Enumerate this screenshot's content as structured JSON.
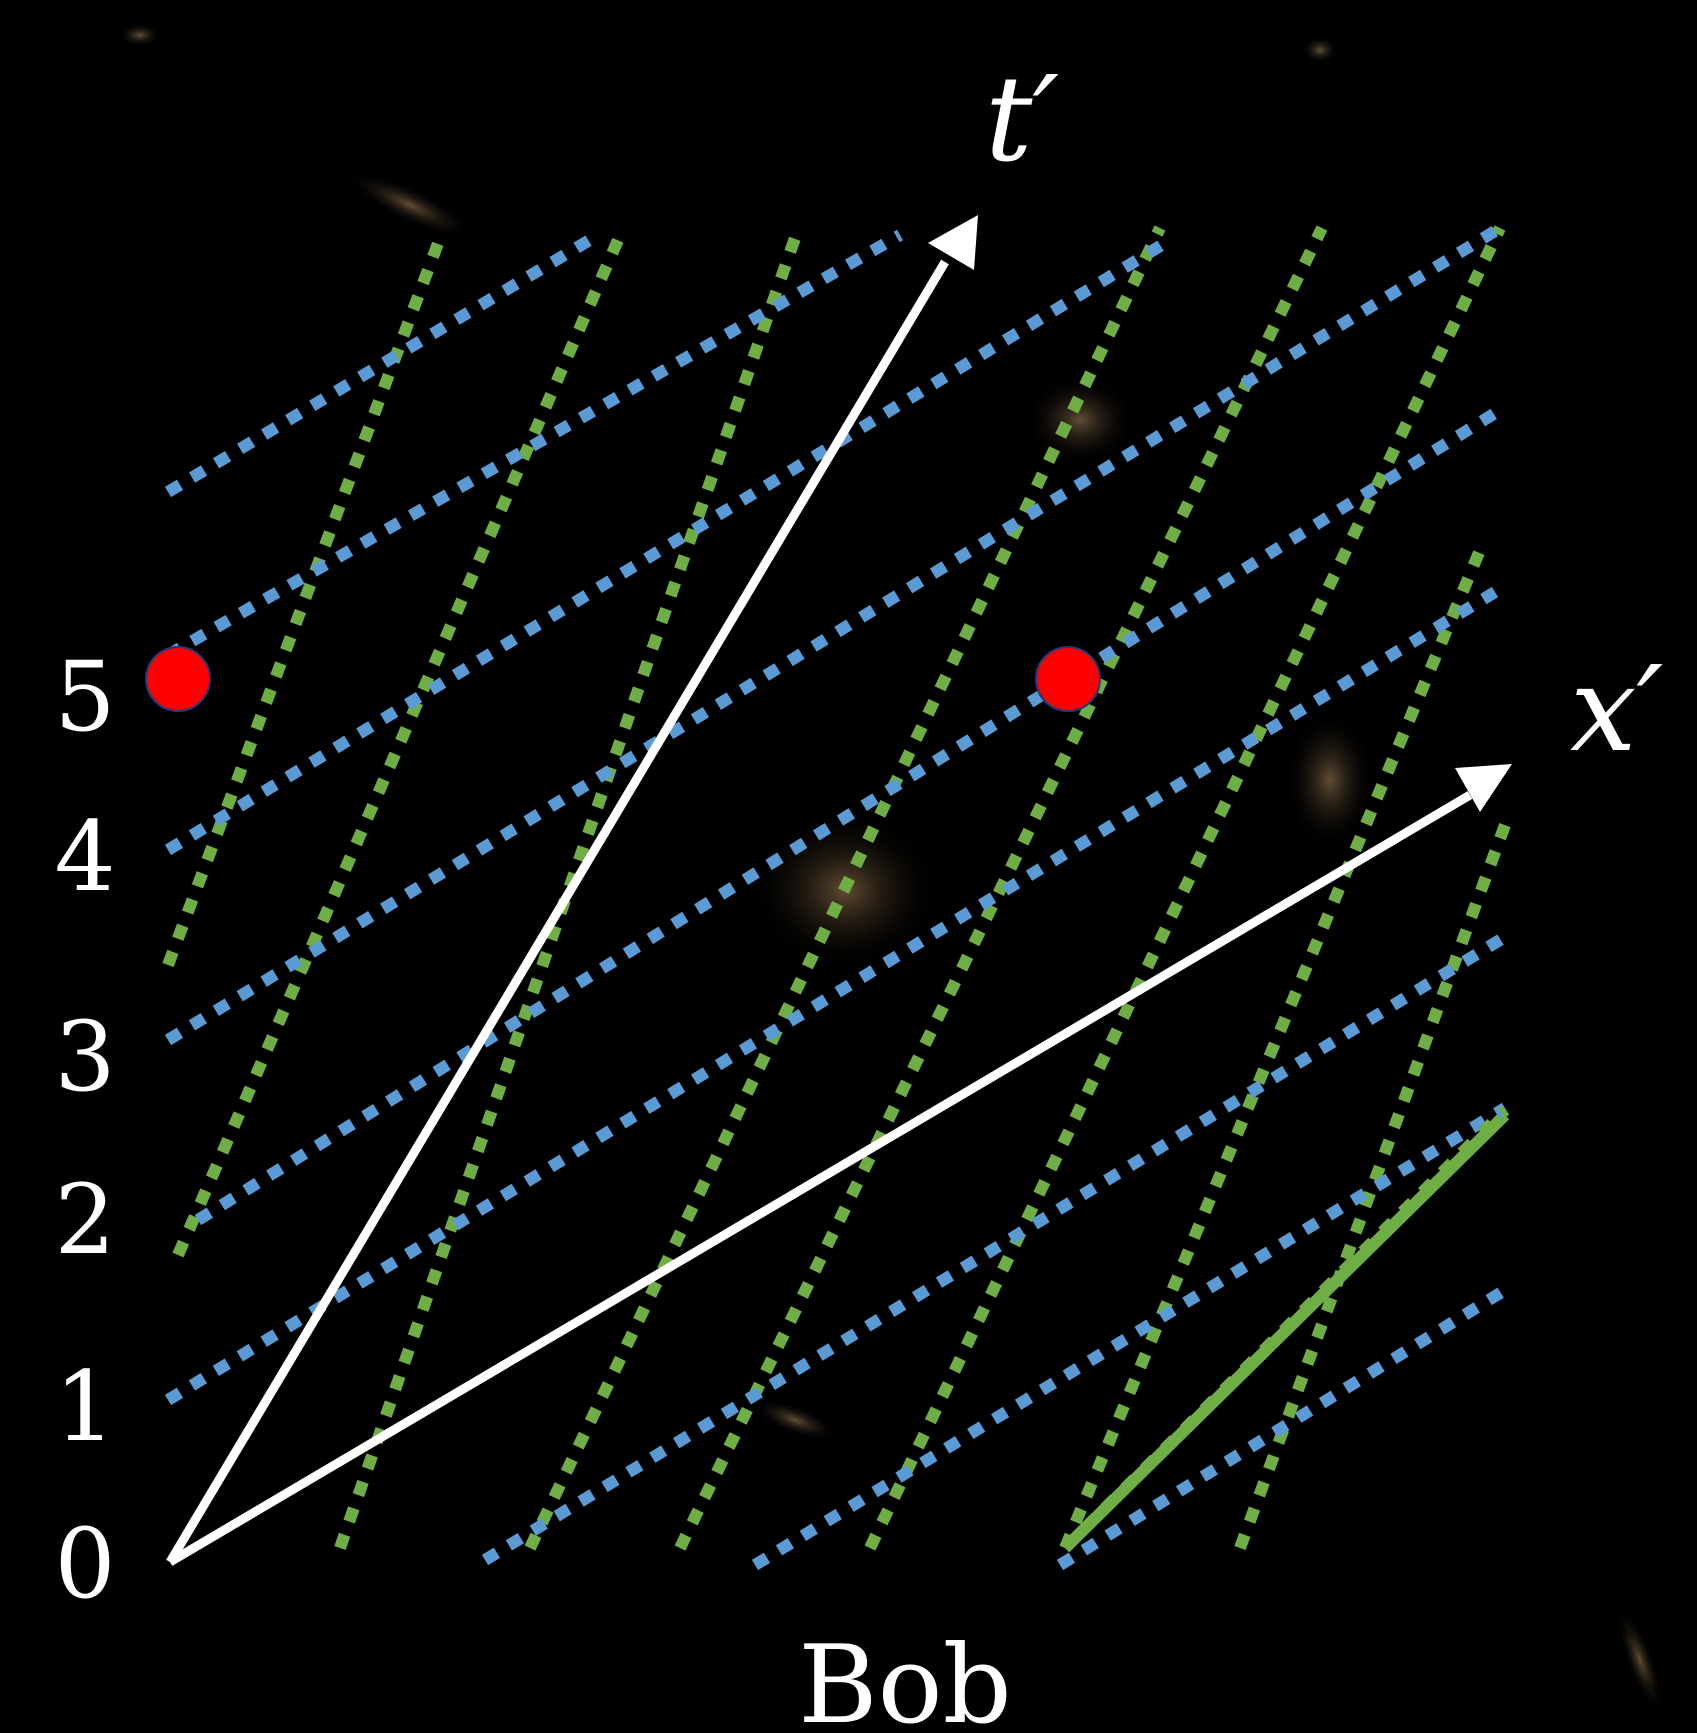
{
  "diagram": {
    "time_axis_label": "t′",
    "space_axis_label": "x′",
    "observer_label": "Bob",
    "tick_labels": [
      "0",
      "1",
      "2",
      "3",
      "4",
      "5"
    ],
    "event_count": 2,
    "colors": {
      "background": "#000000",
      "axes": "#ffffff",
      "worldlines": "#6fae45",
      "simultaneity_lines": "#5b9bd5",
      "events": "#ff0000"
    }
  }
}
